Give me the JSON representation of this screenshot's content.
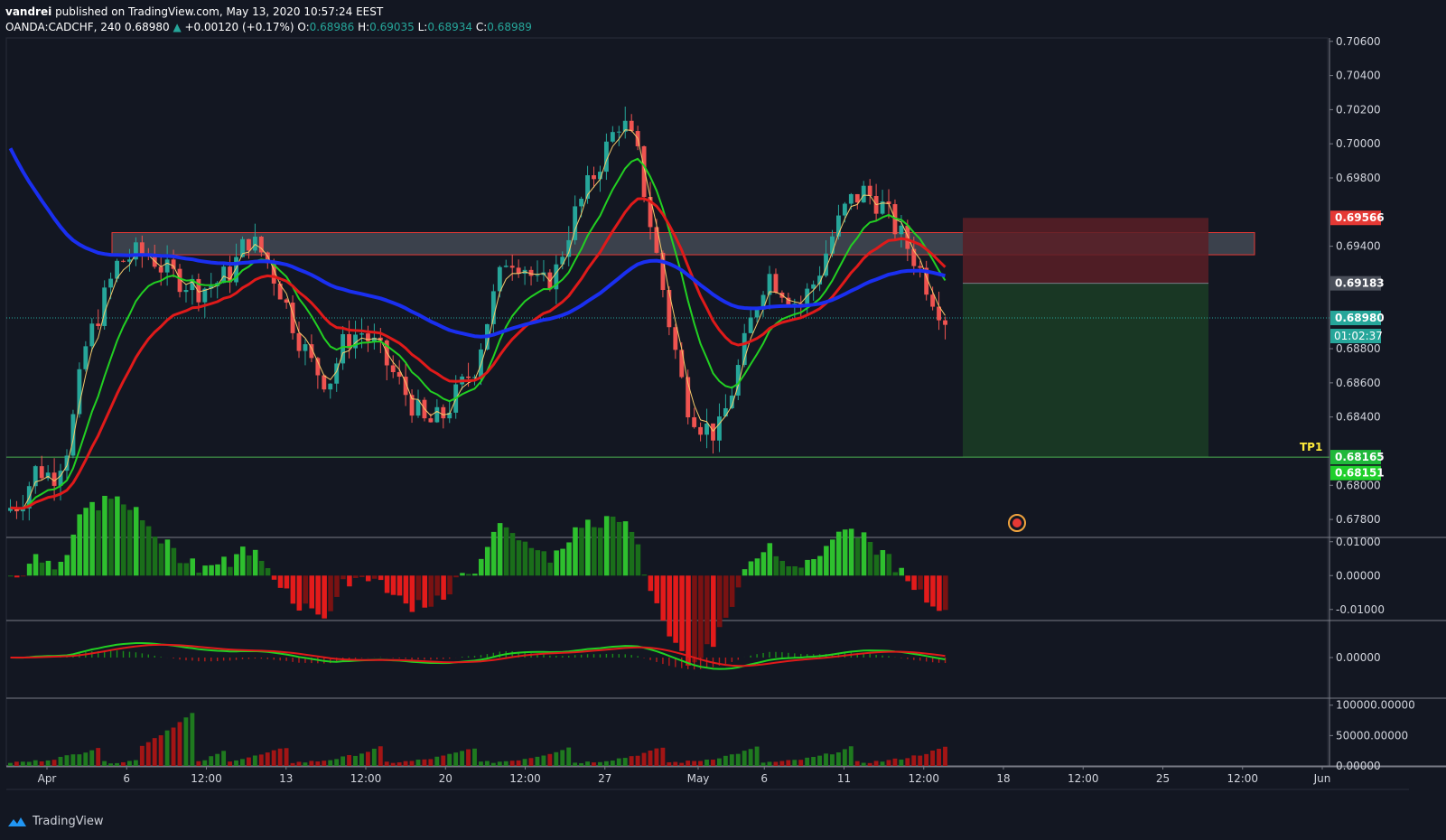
{
  "header": {
    "author": "vandrei",
    "published_text": "published on TradingView.com, May 13, 2020 10:57:24 EEST",
    "symbol": "OANDA:CADCHF, 240",
    "last": "0.68980",
    "change_arrow": "▲",
    "change": "+0.00120 (+0.17%)",
    "o_label": "O:",
    "o": "0.68986",
    "h_label": "H:",
    "h": "0.69035",
    "l_label": "L:",
    "l": "0.68934",
    "c_label": "C:",
    "c": "0.68989"
  },
  "footer": {
    "brand": "TradingView",
    "logo_icon": "tradingview-logo-icon"
  },
  "colors": {
    "background": "#131722",
    "bull": "#26a69a",
    "bear": "#ef5350",
    "ma_fast": "#f5c96b",
    "ma_green": "#22d022",
    "ma_red": "#e01a1a",
    "ma_blue": "#1a2ff0",
    "zone_fill": "#5d6470",
    "zone_border": "#e53935",
    "tp_line": "#4caf50",
    "stop_fill": "#5b1f26",
    "target_fill": "#1b3b25"
  },
  "chart_data": [
    {
      "type": "candlestick",
      "panel": "price",
      "x_tick_labels": [
        "Apr",
        "6",
        "12:00",
        "13",
        "12:00",
        "20",
        "12:00",
        "27",
        "May",
        "6",
        "11",
        "12:00",
        "18",
        "12:00",
        "25",
        "12:00",
        "Jun"
      ],
      "y_tick_labels": [
        "0.70600",
        "0.70400",
        "0.70200",
        "0.70000",
        "0.69800",
        "0.69400",
        "0.68800",
        "0.68600",
        "0.68400",
        "0.68000",
        "0.67800"
      ],
      "ylim": [
        0.677,
        0.7062
      ],
      "close_path": [
        0.6785,
        0.679,
        0.681,
        0.6805,
        0.6825,
        0.688,
        0.6905,
        0.693,
        0.6935,
        0.6935,
        0.6925,
        0.692,
        0.6915,
        0.6918,
        0.6925,
        0.6945,
        0.6935,
        0.6915,
        0.689,
        0.687,
        0.686,
        0.6885,
        0.689,
        0.688,
        0.6865,
        0.685,
        0.6835,
        0.684,
        0.6855,
        0.687,
        0.6905,
        0.6935,
        0.693,
        0.6915,
        0.6925,
        0.6955,
        0.6975,
        0.6995,
        0.7015,
        0.6995,
        0.6945,
        0.6895,
        0.685,
        0.6835,
        0.683,
        0.686,
        0.6895,
        0.6925,
        0.6915,
        0.6905,
        0.692,
        0.6945,
        0.6965,
        0.6972,
        0.6965,
        0.695,
        0.6935,
        0.6915,
        0.6898
      ],
      "current_price": "0.68980",
      "countdown": "01:02:37",
      "price_labels": [
        {
          "value": 0.69566,
          "text": "0.69566",
          "color": "#e53935"
        },
        {
          "value": 0.69183,
          "text": "0.69183",
          "color": "#4a4f5a"
        },
        {
          "value": 0.6898,
          "text": "0.68980",
          "color": "#26a69a"
        },
        {
          "value": 0.68165,
          "text": "0.68165",
          "color": "#1fb83a"
        },
        {
          "value": 0.68151,
          "text": "0.68151",
          "color": "#1fcf2b"
        }
      ],
      "resistance_zone": [
        0.6935,
        0.6948
      ],
      "tp_level": 0.68165,
      "tp_label": "TP1",
      "position": {
        "entry": 0.69183,
        "stop": 0.69566,
        "target": 0.68165
      }
    },
    {
      "type": "histogram",
      "panel": "oscillator",
      "y_tick_labels": [
        "0.01000",
        "0.00000",
        "-0.01000"
      ],
      "ylim": [
        -0.013,
        0.011
      ]
    },
    {
      "type": "line",
      "panel": "macd",
      "y_tick_labels": [
        "0.00000"
      ]
    },
    {
      "type": "bar",
      "panel": "volume",
      "y_tick_labels": [
        "100000.00000",
        "50000.00000",
        "0.00000"
      ],
      "ylim": [
        0,
        110000
      ]
    }
  ]
}
